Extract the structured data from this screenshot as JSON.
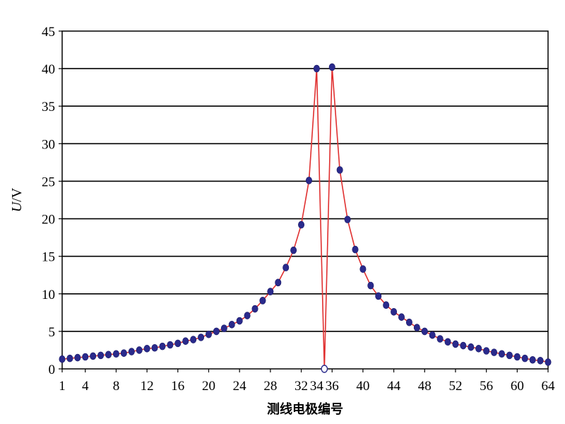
{
  "chart_data": {
    "type": "line",
    "title": "",
    "xlabel": "测线电极编号",
    "ylabel_var": "U",
    "ylabel_unit": "V",
    "ylim": [
      0,
      45
    ],
    "xlim": [
      1,
      64
    ],
    "x_ticks": [
      1,
      4,
      8,
      12,
      16,
      20,
      24,
      28,
      32,
      36,
      40,
      44,
      48,
      52,
      56,
      60,
      64
    ],
    "x_tick_labels": [
      "1",
      "4",
      "8",
      "12",
      "16",
      "20",
      "24",
      "28",
      "32",
      "34",
      "36",
      "40",
      "44",
      "48",
      "52",
      "56",
      "60",
      "64"
    ],
    "x_tick_label_positions": [
      1,
      4,
      8,
      12,
      16,
      20,
      24,
      28,
      32,
      34,
      36,
      40,
      44,
      48,
      52,
      56,
      60,
      64
    ],
    "y_ticks": [
      0,
      5,
      10,
      15,
      20,
      25,
      30,
      35,
      40,
      45
    ],
    "y_tick_labels": [
      "0",
      "5",
      "10",
      "15",
      "20",
      "25",
      "30",
      "35",
      "40",
      "45"
    ],
    "grid": true,
    "line_color": "#e03030",
    "marker_color": "#2a2a8c",
    "series": [
      {
        "x": [
          1,
          2,
          3,
          4,
          5,
          6,
          7,
          8,
          9,
          10,
          11,
          12,
          13,
          14,
          15,
          16,
          17,
          18,
          19,
          20,
          21,
          22,
          23,
          24,
          25,
          26,
          27,
          28,
          29,
          30,
          31,
          32,
          33,
          34,
          35,
          36,
          37,
          38,
          39,
          40,
          41,
          42,
          43,
          44,
          45,
          46,
          47,
          48,
          49,
          50,
          51,
          52,
          53,
          54,
          55,
          56,
          57,
          58,
          59,
          60,
          61,
          62,
          63,
          64
        ],
        "values": [
          1.3,
          1.4,
          1.5,
          1.6,
          1.7,
          1.8,
          1.9,
          2.0,
          2.1,
          2.3,
          2.5,
          2.7,
          2.8,
          3.0,
          3.2,
          3.4,
          3.7,
          3.9,
          4.2,
          4.6,
          5.0,
          5.4,
          5.9,
          6.4,
          7.1,
          8.0,
          9.1,
          10.3,
          11.5,
          13.5,
          15.8,
          19.2,
          25.1,
          40.0,
          0.0,
          40.2,
          26.5,
          19.9,
          15.9,
          13.3,
          11.1,
          9.7,
          8.5,
          7.6,
          6.9,
          6.2,
          5.5,
          5.0,
          4.5,
          4.0,
          3.6,
          3.3,
          3.1,
          2.9,
          2.7,
          2.4,
          2.2,
          2.0,
          1.8,
          1.6,
          1.4,
          1.2,
          1.1,
          0.9
        ]
      }
    ]
  }
}
